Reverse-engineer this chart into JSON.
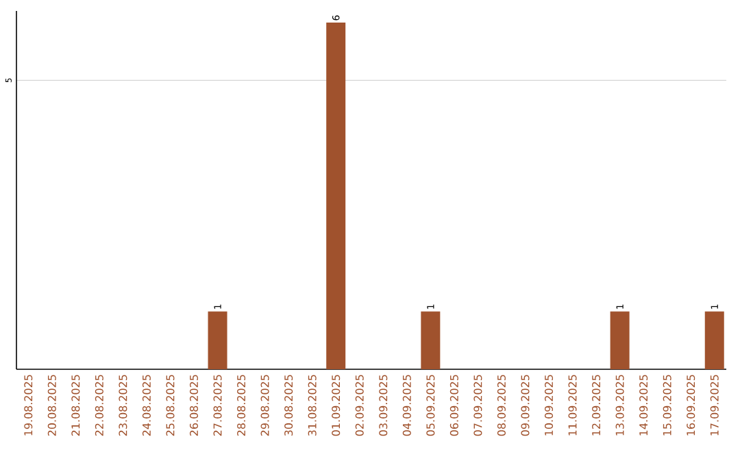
{
  "chart_data": {
    "type": "bar",
    "categories": [
      "19.08.2025",
      "20.08.2025",
      "21.08.2025",
      "22.08.2025",
      "23.08.2025",
      "24.08.2025",
      "25.08.2025",
      "26.08.2025",
      "27.08.2025",
      "28.08.2025",
      "29.08.2025",
      "30.08.2025",
      "31.08.2025",
      "01.09.2025",
      "02.09.2025",
      "03.09.2025",
      "04.09.2025",
      "05.09.2025",
      "06.09.2025",
      "07.09.2025",
      "08.09.2025",
      "09.09.2025",
      "10.09.2025",
      "11.09.2025",
      "12.09.2025",
      "13.09.2025",
      "14.09.2025",
      "15.09.2025",
      "16.09.2025",
      "17.09.2025"
    ],
    "values": [
      0,
      0,
      0,
      0,
      0,
      0,
      0,
      0,
      1,
      0,
      0,
      0,
      0,
      6,
      0,
      0,
      0,
      1,
      0,
      0,
      0,
      0,
      0,
      0,
      0,
      1,
      0,
      0,
      0,
      1
    ],
    "value_labels": [
      null,
      null,
      null,
      null,
      null,
      null,
      null,
      null,
      "1",
      null,
      null,
      null,
      null,
      "6",
      null,
      null,
      null,
      "1",
      null,
      null,
      null,
      null,
      null,
      null,
      null,
      "1",
      null,
      null,
      null,
      "1"
    ],
    "color": "#a0522d",
    "ylim": [
      0,
      6.2
    ],
    "yticks": [
      5
    ],
    "grid": "y"
  }
}
